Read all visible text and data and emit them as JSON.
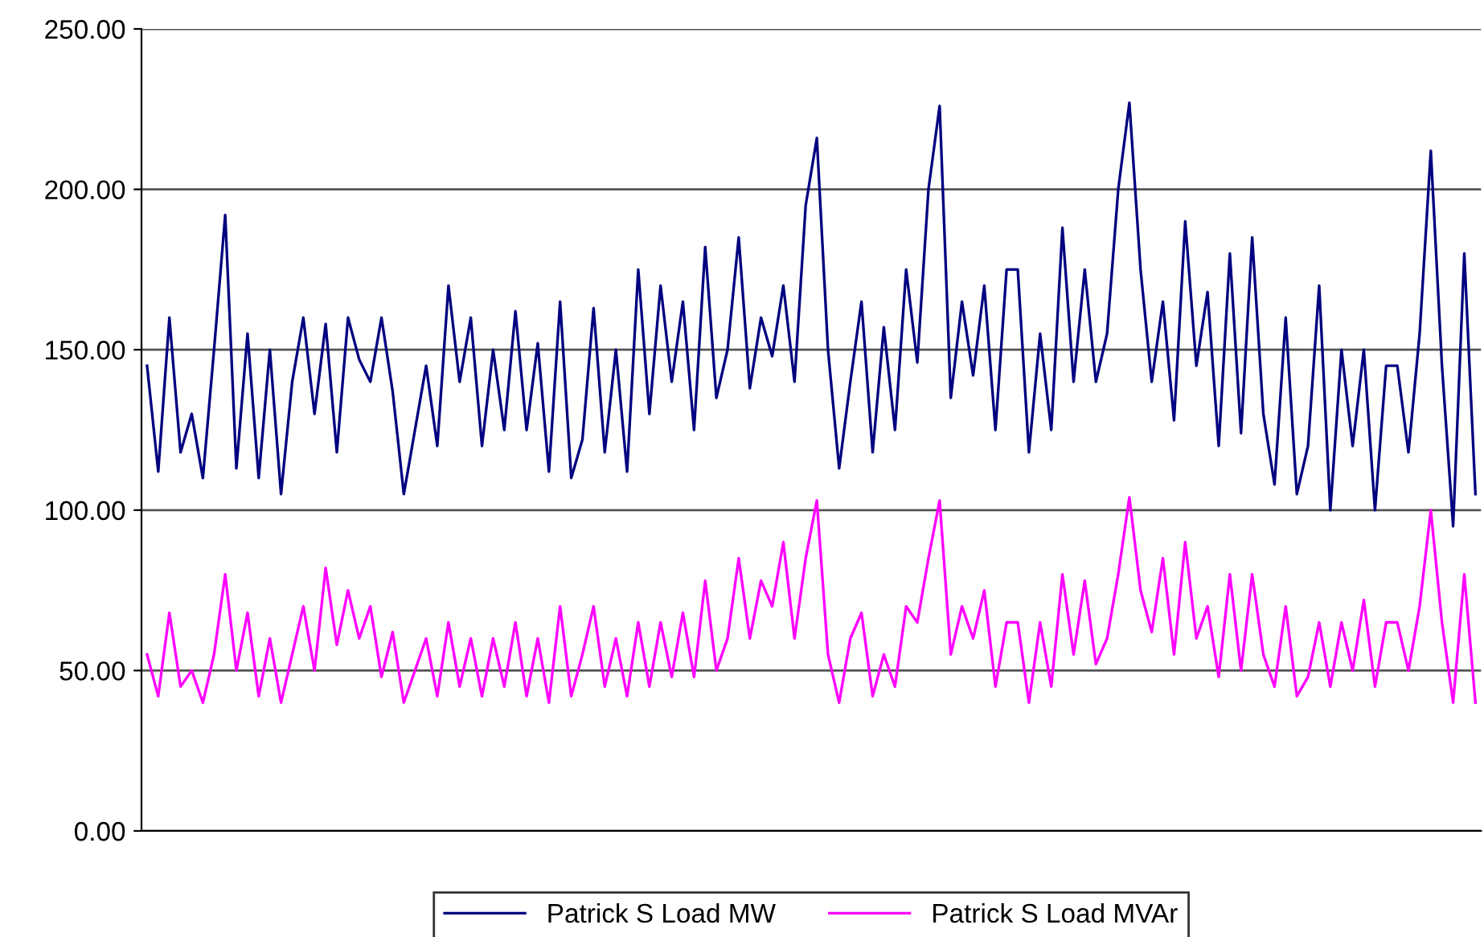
{
  "chart_data": {
    "type": "line",
    "categories": [
      null,
      null,
      null,
      null,
      null,
      null,
      null,
      null,
      null,
      null,
      null,
      null,
      null,
      null,
      null,
      null,
      null,
      null,
      null,
      null,
      null,
      null,
      null,
      null,
      null,
      null,
      null,
      null,
      null,
      null,
      null,
      null,
      null,
      null,
      null,
      null,
      null,
      null,
      null,
      null,
      null,
      null,
      null,
      null,
      null,
      null,
      null,
      null,
      null,
      null,
      null,
      null,
      null,
      null,
      null,
      null,
      null,
      null,
      null,
      null,
      null,
      null,
      null,
      null,
      null,
      null,
      null,
      null,
      null,
      null,
      null,
      null,
      null,
      null,
      null,
      null,
      null,
      null,
      null,
      null,
      null,
      null,
      null,
      null,
      null,
      null,
      null,
      null,
      null,
      null,
      null,
      null,
      null,
      null,
      null,
      null,
      null,
      null,
      null,
      null,
      null,
      null,
      null,
      null,
      null,
      null,
      null,
      null,
      null,
      null,
      null,
      null,
      null,
      null,
      null,
      null,
      null,
      null,
      null,
      null
    ],
    "series": [
      {
        "name": "Patrick S Load MW",
        "color": "#000080",
        "values": [
          145,
          112,
          160,
          118,
          130,
          110,
          150,
          192,
          113,
          155,
          110,
          150,
          105,
          140,
          160,
          130,
          158,
          118,
          160,
          147,
          140,
          160,
          137,
          105,
          125,
          145,
          120,
          170,
          140,
          160,
          120,
          150,
          125,
          162,
          125,
          152,
          112,
          165,
          110,
          122,
          163,
          118,
          150,
          112,
          175,
          130,
          170,
          140,
          165,
          125,
          182,
          135,
          150,
          185,
          138,
          160,
          148,
          170,
          140,
          195,
          216,
          150,
          113,
          140,
          165,
          118,
          157,
          125,
          175,
          146,
          200,
          226,
          135,
          165,
          142,
          170,
          125,
          175,
          175,
          118,
          155,
          125,
          188,
          140,
          175,
          140,
          155,
          200,
          227,
          175,
          140,
          165,
          128,
          190,
          145,
          168,
          120,
          180,
          124,
          185,
          130,
          108,
          160,
          105,
          120,
          170,
          100,
          150,
          120,
          150,
          100,
          145,
          145,
          118,
          155,
          212,
          145,
          95,
          180,
          105
        ]
      },
      {
        "name": "Patrick S Load MVAr",
        "color": "#ff00ff",
        "values": [
          55,
          42,
          68,
          45,
          50,
          40,
          55,
          80,
          50,
          68,
          42,
          60,
          40,
          55,
          70,
          50,
          82,
          58,
          75,
          60,
          70,
          48,
          62,
          40,
          50,
          60,
          42,
          65,
          45,
          60,
          42,
          60,
          45,
          65,
          42,
          60,
          40,
          70,
          42,
          55,
          70,
          45,
          60,
          42,
          65,
          45,
          65,
          48,
          68,
          48,
          78,
          50,
          60,
          85,
          60,
          78,
          70,
          90,
          60,
          85,
          103,
          55,
          40,
          60,
          68,
          42,
          55,
          45,
          70,
          65,
          85,
          103,
          55,
          70,
          60,
          75,
          45,
          65,
          65,
          40,
          65,
          45,
          80,
          55,
          78,
          52,
          60,
          80,
          104,
          75,
          62,
          85,
          55,
          90,
          60,
          70,
          48,
          80,
          50,
          80,
          55,
          45,
          70,
          42,
          48,
          65,
          45,
          65,
          50,
          72,
          45,
          65,
          65,
          50,
          70,
          100,
          65,
          40,
          80,
          40
        ]
      }
    ],
    "ylim": [
      0,
      250
    ],
    "yticks": [
      {
        "value": 0,
        "label": "0.00"
      },
      {
        "value": 50,
        "label": "50.00"
      },
      {
        "value": 100,
        "label": "100.00"
      },
      {
        "value": 150,
        "label": "150.00"
      },
      {
        "value": 200,
        "label": "200.00"
      },
      {
        "value": 250,
        "label": "250.00"
      }
    ],
    "grid": "y",
    "legend": "bottom",
    "line_style": "solid",
    "marker": "none"
  }
}
